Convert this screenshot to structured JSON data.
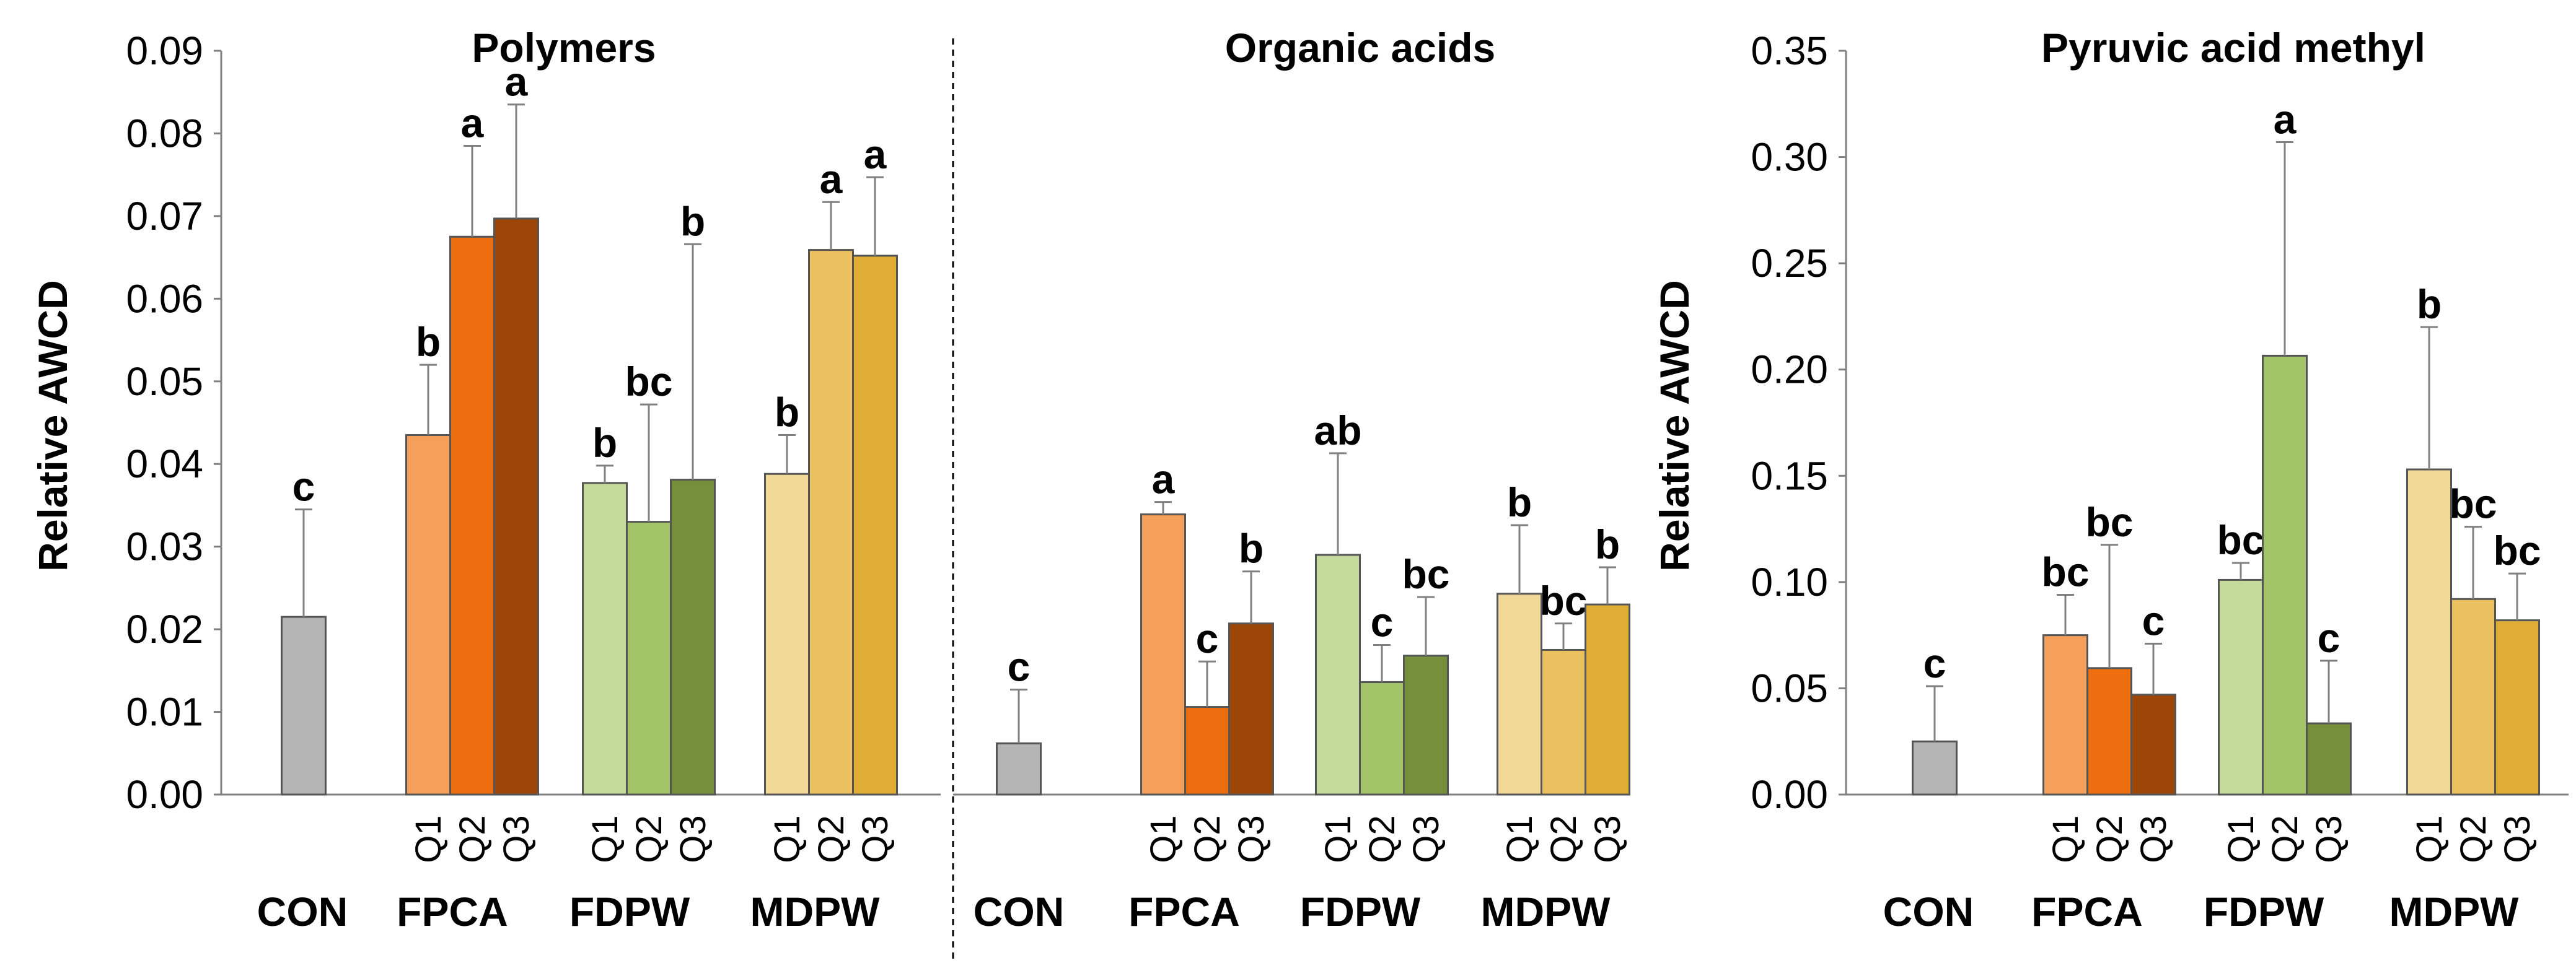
{
  "colors": {
    "CON": "#b4b4b4",
    "FPCA_Q1": "#f5a05a",
    "FPCA_Q2": "#ec6e0f",
    "FPCA_Q3": "#9c4608",
    "FDPW_Q1": "#c5da9d",
    "FDPW_Q2": "#a4c46a",
    "FDPW_Q3": "#768f3a",
    "MDPW_Q1": "#f2d896",
    "MDPW_Q2": "#ebc160",
    "MDPW_Q3": "#dfad34"
  },
  "chart_data": [
    {
      "type": "bar",
      "title": "Polymers",
      "ylabel": "Relative AWCD",
      "ylim": [
        0,
        0.09
      ],
      "yticks": [
        "0.00",
        "0.01",
        "0.02",
        "0.03",
        "0.04",
        "0.05",
        "0.06",
        "0.07",
        "0.08",
        "0.09"
      ],
      "groups": [
        "CON",
        "FPCA",
        "FDPW",
        "MDPW"
      ],
      "subcategories": [
        "Q1",
        "Q2",
        "Q3"
      ],
      "bars": [
        {
          "group": "CON",
          "sub": "",
          "value": 0.0215,
          "error": 0.013,
          "letter": "c",
          "color_key": "CON"
        },
        {
          "group": "FPCA",
          "sub": "Q1",
          "value": 0.0435,
          "error": 0.0085,
          "letter": "b",
          "color_key": "FPCA_Q1"
        },
        {
          "group": "FPCA",
          "sub": "Q2",
          "value": 0.0675,
          "error": 0.011,
          "letter": "a",
          "color_key": "FPCA_Q2"
        },
        {
          "group": "FPCA",
          "sub": "Q3",
          "value": 0.0697,
          "error": 0.0138,
          "letter": "a",
          "color_key": "FPCA_Q3"
        },
        {
          "group": "FDPW",
          "sub": "Q1",
          "value": 0.0377,
          "error": 0.0021,
          "letter": "b",
          "color_key": "FDPW_Q1"
        },
        {
          "group": "FDPW",
          "sub": "Q2",
          "value": 0.033,
          "error": 0.0142,
          "letter": "bc",
          "color_key": "FDPW_Q2"
        },
        {
          "group": "FDPW",
          "sub": "Q3",
          "value": 0.0381,
          "error": 0.0285,
          "letter": "b",
          "color_key": "FDPW_Q3"
        },
        {
          "group": "MDPW",
          "sub": "Q1",
          "value": 0.0388,
          "error": 0.0047,
          "letter": "b",
          "color_key": "MDPW_Q1"
        },
        {
          "group": "MDPW",
          "sub": "Q2",
          "value": 0.0659,
          "error": 0.0058,
          "letter": "a",
          "color_key": "MDPW_Q2"
        },
        {
          "group": "MDPW",
          "sub": "Q3",
          "value": 0.0652,
          "error": 0.0095,
          "letter": "a",
          "color_key": "MDPW_Q3"
        }
      ]
    },
    {
      "type": "bar",
      "title": "Organic acids",
      "ylim": [
        0,
        0.09
      ],
      "groups": [
        "CON",
        "FPCA",
        "FDPW",
        "MDPW"
      ],
      "subcategories": [
        "Q1",
        "Q2",
        "Q3"
      ],
      "bars": [
        {
          "group": "CON",
          "sub": "",
          "value": 0.0062,
          "error": 0.0065,
          "letter": "c",
          "color_key": "CON"
        },
        {
          "group": "FPCA",
          "sub": "Q1",
          "value": 0.0339,
          "error": 0.0015,
          "letter": "a",
          "color_key": "FPCA_Q1"
        },
        {
          "group": "FPCA",
          "sub": "Q2",
          "value": 0.0106,
          "error": 0.0055,
          "letter": "c",
          "color_key": "FPCA_Q2"
        },
        {
          "group": "FPCA",
          "sub": "Q3",
          "value": 0.0207,
          "error": 0.0063,
          "letter": "b",
          "color_key": "FPCA_Q3"
        },
        {
          "group": "FDPW",
          "sub": "Q1",
          "value": 0.029,
          "error": 0.0123,
          "letter": "ab",
          "color_key": "FDPW_Q1"
        },
        {
          "group": "FDPW",
          "sub": "Q2",
          "value": 0.0136,
          "error": 0.0045,
          "letter": "c",
          "color_key": "FDPW_Q2"
        },
        {
          "group": "FDPW",
          "sub": "Q3",
          "value": 0.0168,
          "error": 0.0071,
          "letter": "bc",
          "color_key": "FDPW_Q3"
        },
        {
          "group": "MDPW",
          "sub": "Q1",
          "value": 0.0243,
          "error": 0.0083,
          "letter": "b",
          "color_key": "MDPW_Q1"
        },
        {
          "group": "MDPW",
          "sub": "Q2",
          "value": 0.0175,
          "error": 0.0032,
          "letter": "bc",
          "color_key": "MDPW_Q2"
        },
        {
          "group": "MDPW",
          "sub": "Q3",
          "value": 0.023,
          "error": 0.0045,
          "letter": "b",
          "color_key": "MDPW_Q3"
        }
      ]
    },
    {
      "type": "bar",
      "title": "Pyruvic acid methyl",
      "ylabel": "Relative AWCD",
      "ylim": [
        0,
        0.35
      ],
      "yticks": [
        "0.00",
        "0.05",
        "0.10",
        "0.15",
        "0.20",
        "0.25",
        "0.30",
        "0.35"
      ],
      "groups": [
        "CON",
        "FPCA",
        "FDPW",
        "MDPW"
      ],
      "subcategories": [
        "Q1",
        "Q2",
        "Q3"
      ],
      "bars": [
        {
          "group": "CON",
          "sub": "",
          "value": 0.025,
          "error": 0.026,
          "letter": "c",
          "color_key": "CON"
        },
        {
          "group": "FPCA",
          "sub": "Q1",
          "value": 0.075,
          "error": 0.019,
          "letter": "bc",
          "color_key": "FPCA_Q1"
        },
        {
          "group": "FPCA",
          "sub": "Q2",
          "value": 0.0595,
          "error": 0.058,
          "letter": "bc",
          "color_key": "FPCA_Q2"
        },
        {
          "group": "FPCA",
          "sub": "Q3",
          "value": 0.047,
          "error": 0.024,
          "letter": "c",
          "color_key": "FPCA_Q3"
        },
        {
          "group": "FDPW",
          "sub": "Q1",
          "value": 0.101,
          "error": 0.008,
          "letter": "bc",
          "color_key": "FDPW_Q1"
        },
        {
          "group": "FDPW",
          "sub": "Q2",
          "value": 0.2065,
          "error": 0.1005,
          "letter": "a",
          "color_key": "FDPW_Q2"
        },
        {
          "group": "FDPW",
          "sub": "Q3",
          "value": 0.0335,
          "error": 0.0295,
          "letter": "c",
          "color_key": "FDPW_Q3"
        },
        {
          "group": "MDPW",
          "sub": "Q1",
          "value": 0.153,
          "error": 0.067,
          "letter": "b",
          "color_key": "MDPW_Q1"
        },
        {
          "group": "MDPW",
          "sub": "Q2",
          "value": 0.092,
          "error": 0.034,
          "letter": "bc",
          "color_key": "MDPW_Q2"
        },
        {
          "group": "MDPW",
          "sub": "Q3",
          "value": 0.082,
          "error": 0.022,
          "letter": "bc",
          "color_key": "MDPW_Q3"
        }
      ]
    }
  ]
}
